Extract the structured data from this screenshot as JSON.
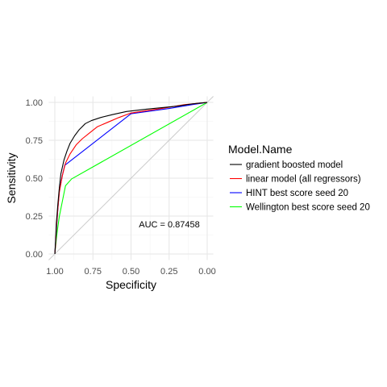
{
  "chart_data": {
    "type": "line",
    "xlabel": "Specificity",
    "ylabel": "Sensitivity",
    "x_reversed": true,
    "xlim": [
      1.0,
      0.0
    ],
    "ylim": [
      0.0,
      1.0
    ],
    "x_ticks": [
      "1.00",
      "0.75",
      "0.50",
      "0.25",
      "0.00"
    ],
    "y_ticks": [
      "0.00",
      "0.25",
      "0.50",
      "0.75",
      "1.00"
    ],
    "grid": true,
    "legend": {
      "title": "Model.Name",
      "position": "right"
    },
    "annotation": {
      "text": "AUC = 0.87458",
      "x": 0.35,
      "y": 0.2
    },
    "reference_line": {
      "from": [
        1.0,
        0.0
      ],
      "to": [
        0.0,
        1.0
      ],
      "color": "#cccccc"
    },
    "series": [
      {
        "name": "gradient boosted model",
        "color": "#000000",
        "points": [
          [
            1.0,
            0.0
          ],
          [
            0.995,
            0.08
          ],
          [
            0.99,
            0.2
          ],
          [
            0.98,
            0.33
          ],
          [
            0.97,
            0.44
          ],
          [
            0.96,
            0.53
          ],
          [
            0.94,
            0.62
          ],
          [
            0.92,
            0.68
          ],
          [
            0.9,
            0.73
          ],
          [
            0.87,
            0.78
          ],
          [
            0.84,
            0.82
          ],
          [
            0.8,
            0.86
          ],
          [
            0.76,
            0.88
          ],
          [
            0.7,
            0.9
          ],
          [
            0.62,
            0.92
          ],
          [
            0.53,
            0.94
          ],
          [
            0.4,
            0.955
          ],
          [
            0.3,
            0.965
          ],
          [
            0.2,
            0.975
          ],
          [
            0.1,
            0.99
          ],
          [
            0.05,
            0.995
          ],
          [
            0.0,
            1.0
          ]
        ]
      },
      {
        "name": "linear model (all regressors)",
        "color": "#ff0000",
        "points": [
          [
            1.0,
            0.0
          ],
          [
            0.995,
            0.06
          ],
          [
            0.99,
            0.17
          ],
          [
            0.98,
            0.3
          ],
          [
            0.97,
            0.41
          ],
          [
            0.95,
            0.52
          ],
          [
            0.93,
            0.6
          ],
          [
            0.9,
            0.66
          ],
          [
            0.86,
            0.72
          ],
          [
            0.82,
            0.76
          ],
          [
            0.77,
            0.8
          ],
          [
            0.72,
            0.84
          ],
          [
            0.65,
            0.87
          ],
          [
            0.58,
            0.9
          ],
          [
            0.5,
            0.93
          ],
          [
            0.4,
            0.945
          ],
          [
            0.3,
            0.96
          ],
          [
            0.15,
            0.985
          ],
          [
            0.05,
            0.995
          ],
          [
            0.0,
            1.0
          ]
        ]
      },
      {
        "name": "HINT best score seed 20",
        "color": "#0000ff",
        "points": [
          [
            1.0,
            0.0
          ],
          [
            0.99,
            0.15
          ],
          [
            0.98,
            0.3
          ],
          [
            0.97,
            0.42
          ],
          [
            0.95,
            0.52
          ],
          [
            0.935,
            0.585
          ],
          [
            0.5,
            0.925
          ],
          [
            0.25,
            0.96
          ],
          [
            0.1,
            0.985
          ],
          [
            0.0,
            1.0
          ]
        ]
      },
      {
        "name": "Wellington best score seed 20",
        "color": "#00ff00",
        "points": [
          [
            1.0,
            0.0
          ],
          [
            0.99,
            0.1
          ],
          [
            0.98,
            0.18
          ],
          [
            0.97,
            0.25
          ],
          [
            0.95,
            0.35
          ],
          [
            0.93,
            0.45
          ],
          [
            0.89,
            0.495
          ],
          [
            0.0,
            1.0
          ]
        ]
      }
    ]
  }
}
